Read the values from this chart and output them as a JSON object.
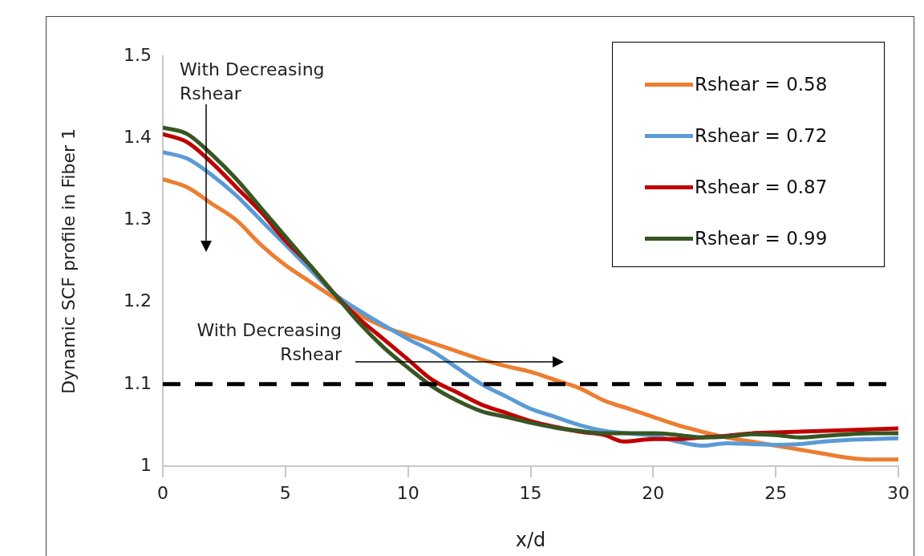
{
  "chart_data": {
    "type": "line",
    "xlabel": "x/d",
    "ylabel": "Dynamic SCF profile in Fiber 1",
    "xlim": [
      0,
      30
    ],
    "xticks": [
      0,
      5,
      10,
      15,
      20,
      25,
      30
    ],
    "ylim": [
      1,
      1.5
    ],
    "yticks": [
      {
        "value": 1,
        "label": "1"
      },
      1.1,
      1.2,
      1.3,
      1.4,
      1.5
    ],
    "grid": false,
    "legend": "top right",
    "marker": "none",
    "line_style": "solid",
    "x": [
      0,
      1,
      2,
      3,
      4,
      5,
      6,
      7,
      8,
      9,
      10,
      11,
      12,
      13,
      14,
      15,
      16,
      17,
      18,
      19,
      20,
      21,
      22,
      23,
      24,
      25,
      26,
      27,
      28,
      29,
      30
    ],
    "series": [
      {
        "name": "Rshear = 0.58",
        "color": "#ed7d31",
        "values": [
          1.35,
          1.34,
          1.32,
          1.3,
          1.27,
          1.245,
          1.225,
          1.205,
          1.185,
          1.17,
          1.16,
          1.15,
          1.14,
          1.13,
          1.122,
          1.115,
          1.105,
          1.095,
          1.08,
          1.07,
          1.06,
          1.05,
          1.042,
          1.035,
          1.03,
          1.025,
          1.02,
          1.015,
          1.01,
          1.008,
          1.008
        ]
      },
      {
        "name": "Rshear = 0.72",
        "color": "#5b9bd5",
        "values": [
          1.383,
          1.375,
          1.355,
          1.33,
          1.3,
          1.27,
          1.24,
          1.21,
          1.19,
          1.172,
          1.155,
          1.14,
          1.12,
          1.1,
          1.085,
          1.07,
          1.06,
          1.05,
          1.043,
          1.04,
          1.037,
          1.03,
          1.025,
          1.028,
          1.027,
          1.026,
          1.027,
          1.03,
          1.032,
          1.033,
          1.034
        ]
      },
      {
        "name": "Rshear = 0.87",
        "color": "#c00000",
        "x": [
          0,
          1,
          2,
          3,
          4,
          5,
          6,
          7,
          8,
          9,
          10,
          11,
          12,
          13,
          14,
          15,
          16,
          17,
          18,
          18.8,
          20,
          21,
          22,
          23,
          24,
          25,
          26,
          27,
          28,
          29,
          30
        ],
        "values": [
          1.405,
          1.395,
          1.37,
          1.34,
          1.31,
          1.275,
          1.245,
          1.21,
          1.18,
          1.155,
          1.13,
          1.105,
          1.09,
          1.075,
          1.065,
          1.055,
          1.048,
          1.042,
          1.038,
          1.03,
          1.033,
          1.033,
          1.035,
          1.037,
          1.04,
          1.041,
          1.042,
          1.043,
          1.044,
          1.045,
          1.046
        ]
      },
      {
        "name": "Rshear = 0.99",
        "color": "#375623",
        "values": [
          1.413,
          1.405,
          1.38,
          1.35,
          1.315,
          1.28,
          1.245,
          1.21,
          1.175,
          1.145,
          1.12,
          1.097,
          1.08,
          1.067,
          1.06,
          1.053,
          1.047,
          1.043,
          1.04,
          1.04,
          1.04,
          1.038,
          1.035,
          1.036,
          1.039,
          1.038,
          1.035,
          1.037,
          1.039,
          1.04,
          1.04
        ]
      }
    ],
    "ref_lines": [
      {
        "axis": "y",
        "value": 1.1,
        "color": "#000000",
        "line_style": "dashed"
      }
    ],
    "annotations": [
      "With Decreasing\nRshear",
      "With Decreasing\nRshear"
    ]
  }
}
